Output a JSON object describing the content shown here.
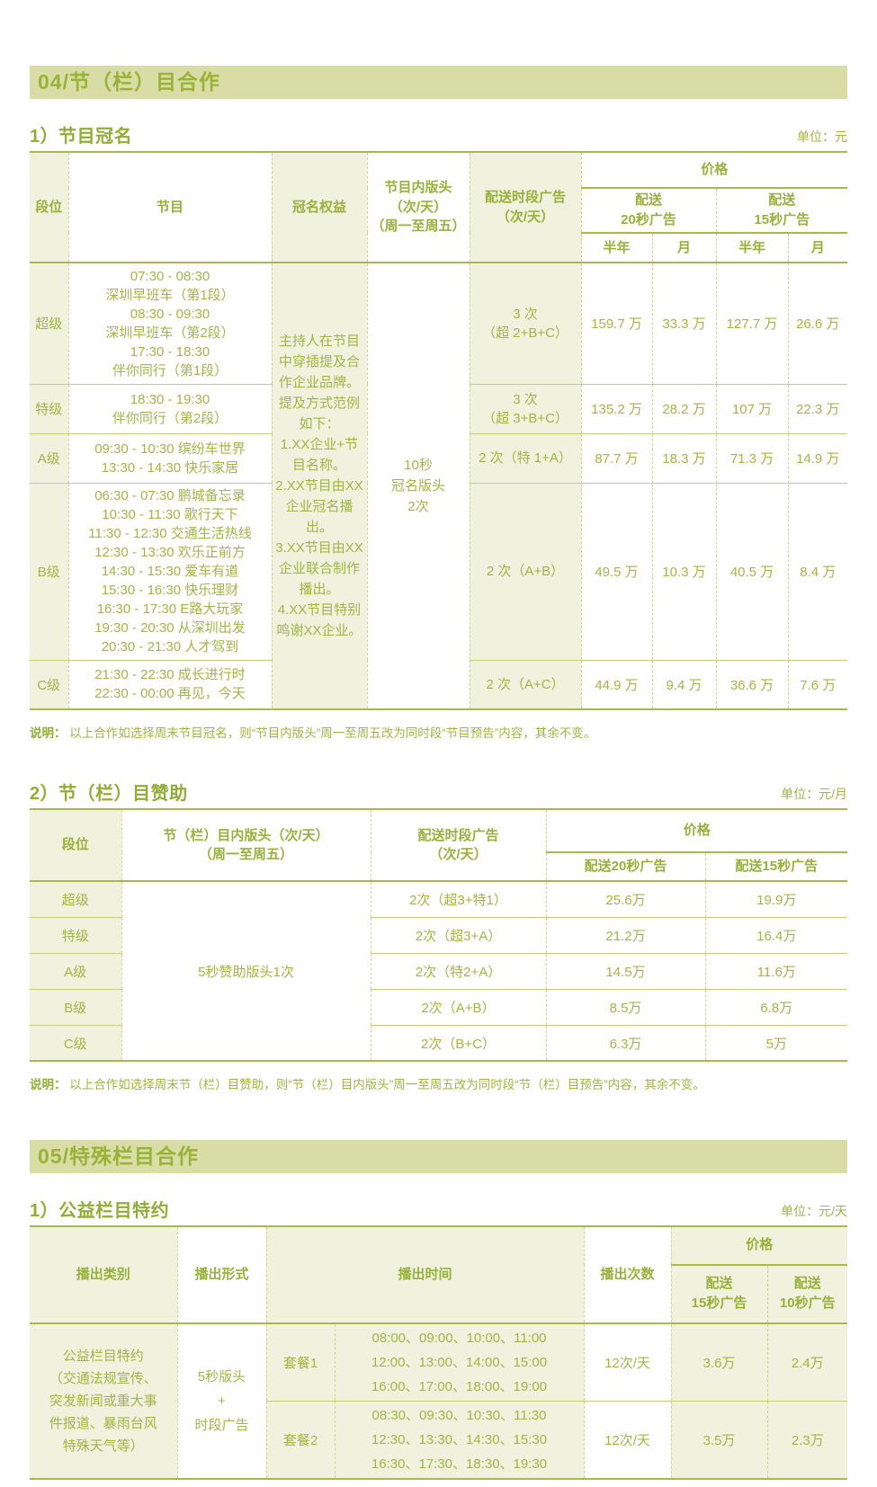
{
  "section04": {
    "band_title": "04/节（栏）目合作",
    "naming": {
      "title": "1）节目冠名",
      "unit": "单位：元",
      "headers": {
        "rank": "段位",
        "program": "节目",
        "rights": "冠名权益",
        "banner": [
          "节目内版头",
          "（次/天）",
          "（周一至周五）"
        ],
        "delivery": [
          "配送时段广告",
          "（次/天）"
        ],
        "price": "价格",
        "p20": [
          "配送",
          "20秒广告"
        ],
        "p15": [
          "配送",
          "15秒广告"
        ],
        "half_year": "半年",
        "month": "月"
      },
      "rights_lines": [
        "主持人在节目中穿插提及合作企业品牌。",
        "提及方式范例如下：",
        "1.XX企业+节目名称。",
        "2.XX节目由XX企业冠名播出。",
        "3.XX节目由XX企业联合制作播出。",
        "4.XX节目特别鸣谢XX企业。"
      ],
      "banner_lines": [
        "10秒",
        "冠名版头",
        "2次"
      ],
      "rows": [
        {
          "rank": "超级",
          "programs": [
            "07:30 - 08:30",
            "深圳早班车（第1段）",
            "08:30 - 09:30",
            "深圳早班车（第2段）",
            "17:30 - 18:30",
            "伴你同行（第1段）"
          ],
          "delivery": [
            "3 次",
            "（超 2+B+C）"
          ],
          "prices": [
            "159.7 万",
            "33.3 万",
            "127.7 万",
            "26.6 万"
          ]
        },
        {
          "rank": "特级",
          "programs": [
            "18:30 - 19:30",
            "伴你同行（第2段）"
          ],
          "delivery": [
            "3 次",
            "（超 3+B+C）"
          ],
          "prices": [
            "135.2 万",
            "28.2 万",
            "107 万",
            "22.3 万"
          ]
        },
        {
          "rank": "A级",
          "programs": [
            "09:30 - 10:30  缤纷车世界",
            "13:30 - 14:30  快乐家居"
          ],
          "delivery": [
            "2 次（特 1+A）"
          ],
          "prices": [
            "87.7 万",
            "18.3 万",
            "71.3 万",
            "14.9 万"
          ]
        },
        {
          "rank": "B级",
          "programs": [
            "06:30 - 07:30  鹏城备忘录",
            "10:30 - 11:30  歌行天下",
            "11:30 - 12:30  交通生活热线",
            "12:30 - 13:30  欢乐正前方",
            "14:30 - 15:30  爱车有道",
            "15:30 - 16:30  快乐理财",
            "16:30 - 17:30  E路大玩家",
            "19:30 - 20:30  从深圳出发",
            "20:30 - 21:30  人才驾到"
          ],
          "delivery": [
            "2 次（A+B）"
          ],
          "prices": [
            "49.5 万",
            "10.3 万",
            "40.5 万",
            "8.4 万"
          ]
        },
        {
          "rank": "C级",
          "programs": [
            "21:30 - 22:30  成长进行时",
            "22:30 - 00:00  再见，今天"
          ],
          "delivery": [
            "2 次（A+C）"
          ],
          "prices": [
            "44.9 万",
            "9.4 万",
            "36.6 万",
            "7.6 万"
          ]
        }
      ],
      "note_label": "说明：",
      "note": "以上合作如选择周末节目冠名，则“节目内版头”周一至周五改为同时段“节目预告”内容，其余不变。"
    },
    "sponsor": {
      "title": "2）节（栏）目赞助",
      "unit": "单位：元/月",
      "headers": {
        "rank": "段位",
        "banner": [
          "节（栏）目内版头（次/天）",
          "（周一至周五）"
        ],
        "delivery": [
          "配送时段广告",
          "（次/天）"
        ],
        "price": "价格",
        "p20": "配送20秒广告",
        "p15": "配送15秒广告"
      },
      "banner_merged": "5秒赞助版头1次",
      "rows": [
        {
          "rank": "超级",
          "delivery": "2次（超3+特1）",
          "p20": "25.6万",
          "p15": "19.9万"
        },
        {
          "rank": "特级",
          "delivery": "2次（超3+A）",
          "p20": "21.2万",
          "p15": "16.4万"
        },
        {
          "rank": "A级",
          "delivery": "2次（特2+A）",
          "p20": "14.5万",
          "p15": "11.6万"
        },
        {
          "rank": "B级",
          "delivery": "2次（A+B）",
          "p20": "8.5万",
          "p15": "6.8万"
        },
        {
          "rank": "C级",
          "delivery": "2次（B+C）",
          "p20": "6.3万",
          "p15": "5万"
        }
      ],
      "note_label": "说明：",
      "note": "以上合作如选择周末节（栏）目赞助，则“节（栏）目内版头”周一至周五改为同时段“节（栏）目预告”内容，其余不变。"
    }
  },
  "section05": {
    "band_title": "05/特殊栏目合作",
    "psa": {
      "title": "1）公益栏目特约",
      "unit": "单位：元/天",
      "headers": {
        "category": "播出类别",
        "form": "播出形式",
        "time": "播出时间",
        "count": "播出次数",
        "price": "价格",
        "p15": [
          "配送",
          "15秒广告"
        ],
        "p10": [
          "配送",
          "10秒广告"
        ]
      },
      "category_lines": [
        "公益栏目特约",
        "（交通法规宣传、",
        "突发新闻或重大事",
        "件报道、暴雨台风",
        "特殊天气等）"
      ],
      "form_lines": [
        "5秒版头",
        "+",
        "时段广告"
      ],
      "rows": [
        {
          "package": "套餐1",
          "times": [
            "08:00、09:00、10:00、11:00",
            "12:00、13:00、14:00、15:00",
            "16:00、17:00、18:00、19:00"
          ],
          "count": "12次/天",
          "p15": "3.6万",
          "p10": "2.4万"
        },
        {
          "package": "套餐2",
          "times": [
            "08:30、09:30、10:30、11:30",
            "12:30、13:30、14:30、15:30",
            "16:30、17:30、18:30、19:30"
          ],
          "count": "12次/天",
          "p15": "3.5万",
          "p10": "2.3万"
        }
      ]
    }
  }
}
